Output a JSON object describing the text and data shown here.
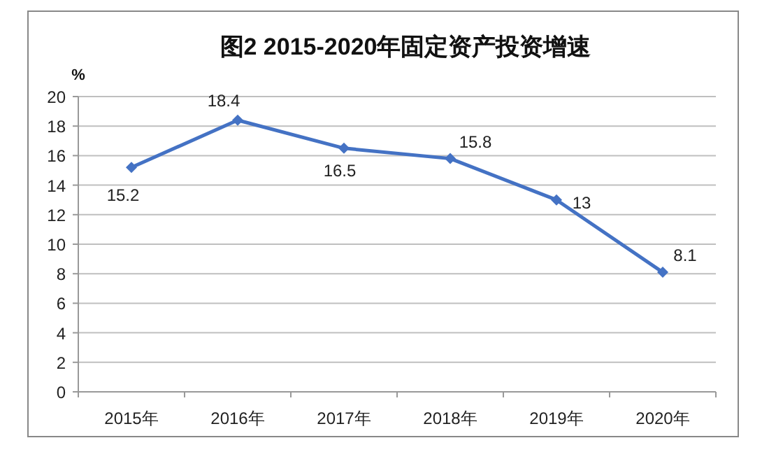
{
  "chart_data": {
    "type": "line",
    "title": "图2  2015-2020年固定资产投资增速",
    "ylabel": "%",
    "categories": [
      "2015年",
      "2016年",
      "2017年",
      "2018年",
      "2019年",
      "2020年"
    ],
    "series": [
      {
        "color": "#4472c4",
        "values": [
          15.2,
          18.4,
          16.5,
          15.8,
          13,
          8.1
        ]
      }
    ],
    "ylim": [
      0,
      20
    ],
    "yticks": [
      0,
      2,
      4,
      6,
      8,
      10,
      12,
      14,
      16,
      18,
      20
    ],
    "grid": "y",
    "marker": "diamond",
    "line_style": "solid",
    "data_labels": true
  }
}
